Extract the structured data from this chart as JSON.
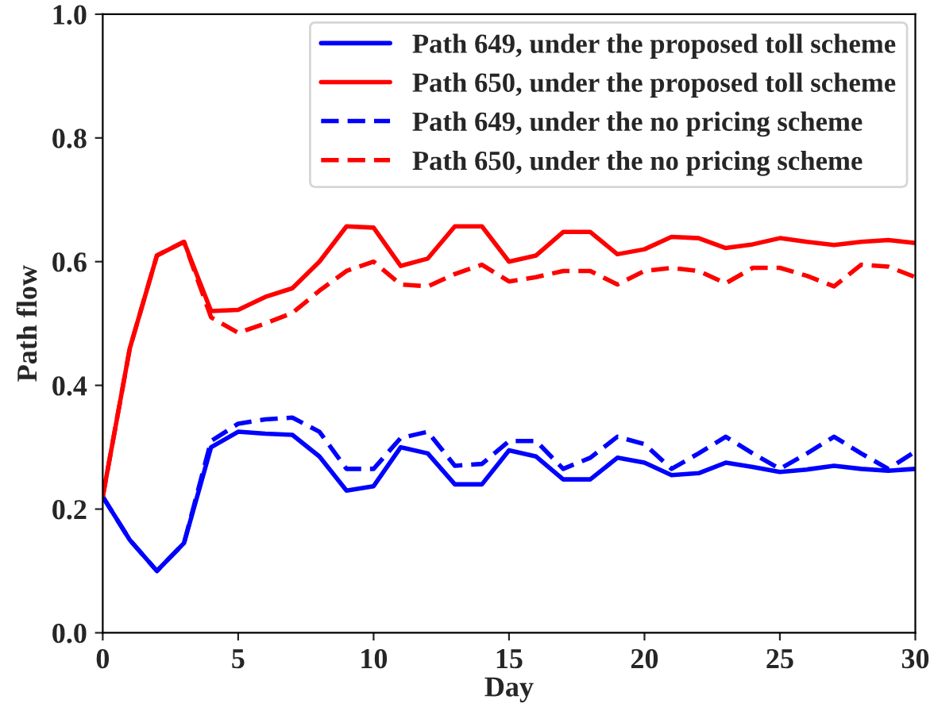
{
  "chart_data": {
    "type": "line",
    "xlabel": "Day",
    "ylabel": "Path flow",
    "x": [
      0,
      1,
      2,
      3,
      4,
      5,
      6,
      7,
      8,
      9,
      10,
      11,
      12,
      13,
      14,
      15,
      16,
      17,
      18,
      19,
      20,
      21,
      22,
      23,
      24,
      25,
      26,
      27,
      28,
      29,
      30
    ],
    "series": [
      {
        "name": "Path 649, under the proposed toll scheme",
        "color": "#0000ff",
        "line_style": "solid",
        "values": [
          0.22,
          0.15,
          0.1,
          0.145,
          0.3,
          0.325,
          0.322,
          0.32,
          0.285,
          0.23,
          0.237,
          0.3,
          0.29,
          0.24,
          0.24,
          0.295,
          0.285,
          0.248,
          0.248,
          0.283,
          0.275,
          0.255,
          0.258,
          0.275,
          0.268,
          0.26,
          0.264,
          0.27,
          0.265,
          0.262,
          0.265
        ]
      },
      {
        "name": "Path 650, under the proposed toll scheme",
        "color": "#ff0000",
        "line_style": "solid",
        "values": [
          0.22,
          0.46,
          0.61,
          0.632,
          0.52,
          0.522,
          0.543,
          0.557,
          0.6,
          0.657,
          0.655,
          0.593,
          0.605,
          0.657,
          0.657,
          0.6,
          0.61,
          0.648,
          0.648,
          0.612,
          0.62,
          0.64,
          0.638,
          0.622,
          0.628,
          0.638,
          0.632,
          0.627,
          0.632,
          0.635,
          0.63
        ]
      },
      {
        "name": "Path 649, under the no pricing scheme",
        "color": "#0000ff",
        "line_style": "dashed",
        "values": [
          0.22,
          0.15,
          0.1,
          0.145,
          0.31,
          0.338,
          0.345,
          0.348,
          0.325,
          0.265,
          0.265,
          0.315,
          0.325,
          0.27,
          0.273,
          0.31,
          0.31,
          0.265,
          0.283,
          0.317,
          0.305,
          0.265,
          0.29,
          0.317,
          0.29,
          0.265,
          0.29,
          0.317,
          0.29,
          0.265,
          0.293
        ]
      },
      {
        "name": "Path 650, under the no pricing scheme",
        "color": "#ff0000",
        "line_style": "dashed",
        "values": [
          0.22,
          0.46,
          0.61,
          0.632,
          0.51,
          0.485,
          0.5,
          0.517,
          0.553,
          0.585,
          0.6,
          0.563,
          0.56,
          0.58,
          0.595,
          0.568,
          0.575,
          0.585,
          0.585,
          0.563,
          0.585,
          0.59,
          0.585,
          0.565,
          0.59,
          0.59,
          0.577,
          0.56,
          0.595,
          0.592,
          0.575
        ]
      }
    ],
    "xlim": [
      0,
      30
    ],
    "xticks": [
      0,
      5,
      10,
      15,
      20,
      25,
      30
    ],
    "ylim": [
      0.0,
      1.0
    ],
    "yticks": [
      {
        "value": 0.0,
        "label": "0.0"
      },
      {
        "value": 0.2,
        "label": "0.2"
      },
      {
        "value": 0.4,
        "label": "0.4"
      },
      {
        "value": 0.6,
        "label": "0.6"
      },
      {
        "value": 0.8,
        "label": "0.8"
      },
      {
        "value": 1.0,
        "label": "1.0"
      }
    ],
    "legend": "top right",
    "grid": false,
    "marker": "none"
  }
}
